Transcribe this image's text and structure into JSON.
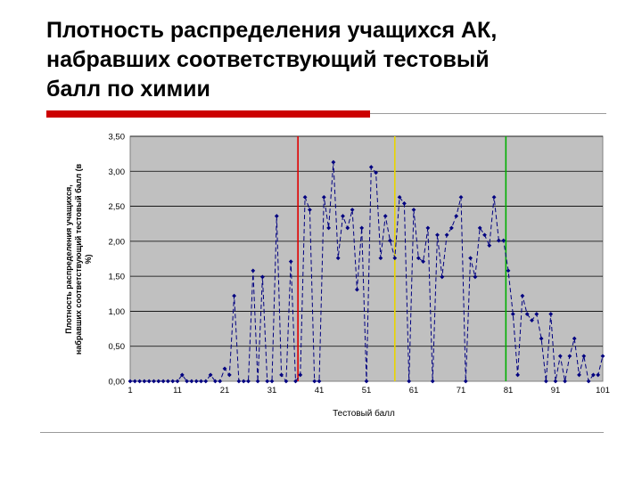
{
  "slide": {
    "title_line1": "Плотность распределения учащихся АК,",
    "title_line2": "набравших соответствующий тестовый",
    "title_line3": "балл по химии"
  },
  "chart_data": {
    "type": "line",
    "xlabel": "Тестовый балл",
    "ylabel_line1": "Плотность распределения учащихся,",
    "ylabel_line2": "набравших соответствующий тестовый балл (в",
    "ylabel_line3": "%)",
    "xlim": [
      1,
      101
    ],
    "ylim": [
      0,
      3.5
    ],
    "x_ticks": [
      1,
      11,
      21,
      31,
      41,
      51,
      61,
      71,
      81,
      91,
      101
    ],
    "y_ticks": [
      "0,00",
      "0,50",
      "1,00",
      "1,50",
      "2,00",
      "2,50",
      "3,00",
      "3,50"
    ],
    "grid": "horizontal",
    "series_color": "#000080",
    "x": [
      1,
      2,
      3,
      4,
      5,
      6,
      7,
      8,
      9,
      10,
      11,
      12,
      13,
      14,
      15,
      16,
      17,
      18,
      19,
      20,
      21,
      22,
      23,
      24,
      25,
      26,
      27,
      28,
      29,
      30,
      31,
      32,
      33,
      34,
      35,
      36,
      37,
      38,
      39,
      40,
      41,
      42,
      43,
      44,
      45,
      46,
      47,
      48,
      49,
      50,
      51,
      52,
      53,
      54,
      55,
      56,
      57,
      58,
      59,
      60,
      61,
      62,
      63,
      64,
      65,
      66,
      67,
      68,
      69,
      70,
      71,
      72,
      73,
      74,
      75,
      76,
      77,
      78,
      79,
      80,
      81,
      82,
      83,
      84,
      85,
      86,
      87,
      88,
      89,
      90,
      91,
      92,
      93,
      94,
      95,
      96,
      97,
      98,
      99,
      100,
      101
    ],
    "values": [
      0,
      0,
      0,
      0,
      0,
      0,
      0,
      0,
      0,
      0,
      0,
      0.09,
      0,
      0,
      0,
      0,
      0,
      0.09,
      0,
      0,
      0.18,
      0.09,
      1.22,
      0,
      0,
      0,
      1.58,
      0,
      1.49,
      0,
      0,
      2.36,
      0.09,
      0,
      1.71,
      0,
      0.09,
      2.63,
      2.45,
      0,
      0,
      2.63,
      2.19,
      3.13,
      1.76,
      2.36,
      2.19,
      2.45,
      1.31,
      2.19,
      0,
      3.06,
      2.98,
      1.76,
      2.36,
      2.01,
      1.76,
      2.63,
      2.54,
      0,
      2.45,
      1.76,
      1.71,
      2.19,
      0,
      2.09,
      1.49,
      2.09,
      2.19,
      2.36,
      2.63,
      0,
      1.76,
      1.49,
      2.19,
      2.09,
      1.94,
      2.63,
      2.01,
      2.01,
      1.58,
      0.96,
      0.09,
      1.22,
      0.96,
      0.87,
      0.96,
      0.61,
      0,
      0.96,
      0,
      0.36,
      0,
      0.36,
      0.61,
      0.09,
      0.36,
      0,
      0.09,
      0.09,
      0.36
    ],
    "markers": [
      {
        "x": 36.5,
        "color": "#e00000"
      },
      {
        "x": 57,
        "color": "#e8d400"
      },
      {
        "x": 80.5,
        "color": "#00b000"
      }
    ]
  }
}
